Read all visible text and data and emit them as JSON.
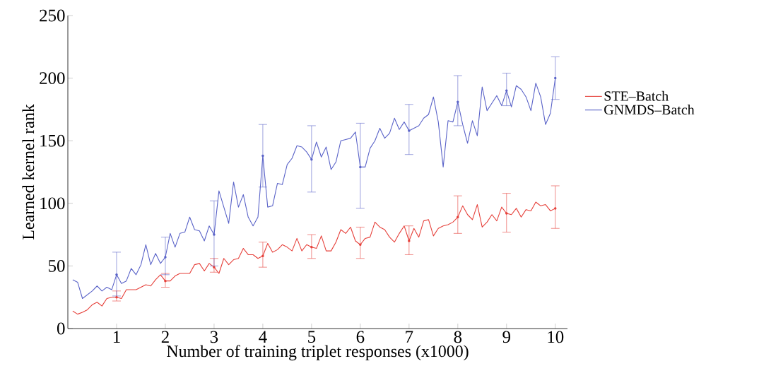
{
  "chart_data": {
    "type": "line",
    "xlabel": "Number of training triplet responses (x1000)",
    "ylabel": "Learned kernel rank",
    "x": [
      0.1,
      0.2,
      0.3,
      0.4,
      0.5,
      0.6,
      0.7,
      0.8,
      0.9,
      1.0,
      1.1,
      1.2,
      1.3,
      1.4,
      1.5,
      1.6,
      1.7,
      1.8,
      1.9,
      2.0,
      2.1,
      2.2,
      2.3,
      2.4,
      2.5,
      2.6,
      2.7,
      2.8,
      2.9,
      3.0,
      3.1,
      3.2,
      3.3,
      3.4,
      3.5,
      3.6,
      3.7,
      3.8,
      3.9,
      4.0,
      4.1,
      4.2,
      4.3,
      4.4,
      4.5,
      4.6,
      4.7,
      4.8,
      4.9,
      5.0,
      5.1,
      5.2,
      5.3,
      5.4,
      5.5,
      5.6,
      5.7,
      5.8,
      5.9,
      6.0,
      6.1,
      6.2,
      6.3,
      6.4,
      6.5,
      6.6,
      6.7,
      6.8,
      6.9,
      7.0,
      7.1,
      7.2,
      7.3,
      7.4,
      7.5,
      7.6,
      7.7,
      7.8,
      7.9,
      8.0,
      8.1,
      8.2,
      8.3,
      8.4,
      8.5,
      8.6,
      8.7,
      8.8,
      8.9,
      9.0,
      9.1,
      9.2,
      9.3,
      9.4,
      9.5,
      9.6,
      9.7,
      9.8,
      9.9,
      10.0
    ],
    "series": [
      {
        "name": "STE–Batch",
        "color": "#e6403a",
        "values": [
          14,
          11.5,
          13,
          15,
          19,
          21,
          18,
          24,
          25,
          25,
          24,
          31,
          31,
          31,
          33,
          35,
          34,
          39,
          43,
          38,
          38,
          42,
          44,
          44,
          44,
          51,
          52,
          46,
          52,
          49,
          44,
          56,
          51,
          55,
          56,
          64,
          59,
          59,
          56,
          58,
          68,
          61,
          63,
          67,
          65,
          62,
          72,
          62,
          67,
          65,
          64,
          74,
          62,
          62,
          69,
          79,
          76,
          81,
          70,
          67,
          72,
          73,
          85,
          81,
          79,
          73,
          69,
          76,
          82,
          70,
          80,
          73,
          86,
          87,
          74,
          80,
          82,
          83,
          85,
          89,
          98,
          91,
          87,
          99,
          81,
          85,
          91,
          86,
          97,
          92,
          91,
          96,
          89,
          95,
          94,
          101,
          98,
          99,
          94,
          96
        ],
        "errors": [
          null,
          null,
          null,
          null,
          null,
          null,
          null,
          null,
          null,
          [
            22,
            30
          ],
          null,
          null,
          null,
          null,
          null,
          null,
          null,
          null,
          null,
          [
            33,
            44
          ],
          null,
          null,
          null,
          null,
          null,
          null,
          null,
          null,
          null,
          [
            45,
            56
          ],
          null,
          null,
          null,
          null,
          null,
          null,
          null,
          null,
          null,
          [
            49,
            69
          ],
          null,
          null,
          null,
          null,
          null,
          null,
          null,
          null,
          null,
          [
            56,
            75
          ],
          null,
          null,
          null,
          null,
          null,
          null,
          null,
          null,
          null,
          [
            56,
            81
          ],
          null,
          null,
          null,
          null,
          null,
          null,
          null,
          null,
          null,
          [
            59,
            82
          ],
          null,
          null,
          null,
          null,
          null,
          null,
          null,
          null,
          null,
          [
            76,
            106
          ],
          null,
          null,
          null,
          null,
          null,
          null,
          null,
          null,
          null,
          [
            77,
            108
          ],
          null,
          null,
          null,
          null,
          null,
          null,
          null,
          null,
          null,
          [
            80,
            114
          ]
        ]
      },
      {
        "name": "GNMDS–Batch",
        "color": "#5a63c8",
        "values": [
          39,
          37,
          24,
          27,
          30,
          34,
          30,
          33,
          31,
          43,
          36,
          38,
          48,
          43,
          51,
          67,
          51,
          60,
          52,
          57,
          76,
          65,
          76,
          77,
          89,
          79,
          78,
          70,
          82,
          75,
          110,
          97,
          84,
          117,
          97,
          107,
          89,
          82,
          89,
          138,
          97,
          98,
          116,
          115,
          131,
          136,
          146,
          145,
          141,
          135,
          149,
          137,
          145,
          127,
          133,
          150,
          151,
          152,
          157,
          129,
          129,
          144,
          150,
          160,
          152,
          156,
          168,
          159,
          165,
          158,
          160,
          162,
          168,
          171,
          185,
          165,
          129,
          166,
          165,
          181,
          163,
          148,
          166,
          154,
          193,
          174,
          180,
          186,
          178,
          190,
          177,
          194,
          191,
          185,
          174,
          196,
          185,
          163,
          172,
          200
        ],
        "errors": [
          null,
          null,
          null,
          null,
          null,
          null,
          null,
          null,
          null,
          [
            26,
            61
          ],
          null,
          null,
          null,
          null,
          null,
          null,
          null,
          null,
          null,
          [
            43,
            73
          ],
          null,
          null,
          null,
          null,
          null,
          null,
          null,
          null,
          null,
          [
            50,
            102
          ],
          null,
          null,
          null,
          null,
          null,
          null,
          null,
          null,
          null,
          [
            113,
            163
          ],
          null,
          null,
          null,
          null,
          null,
          null,
          null,
          null,
          null,
          [
            109,
            162
          ],
          null,
          null,
          null,
          null,
          null,
          null,
          null,
          null,
          null,
          [
            96,
            164
          ],
          null,
          null,
          null,
          null,
          null,
          null,
          null,
          null,
          null,
          [
            139,
            179
          ],
          null,
          null,
          null,
          null,
          null,
          null,
          null,
          null,
          null,
          [
            162,
            202
          ],
          null,
          null,
          null,
          null,
          null,
          null,
          null,
          null,
          null,
          [
            178,
            204
          ],
          null,
          null,
          null,
          null,
          null,
          null,
          null,
          null,
          null,
          [
            183,
            217
          ]
        ]
      }
    ],
    "xlim": [
      0,
      10.25
    ],
    "ylim": [
      0,
      250
    ],
    "xticks": [
      1,
      2,
      3,
      4,
      5,
      6,
      7,
      8,
      9,
      10
    ],
    "yticks": [
      0,
      50,
      100,
      150,
      200,
      250
    ],
    "legend": "right"
  }
}
